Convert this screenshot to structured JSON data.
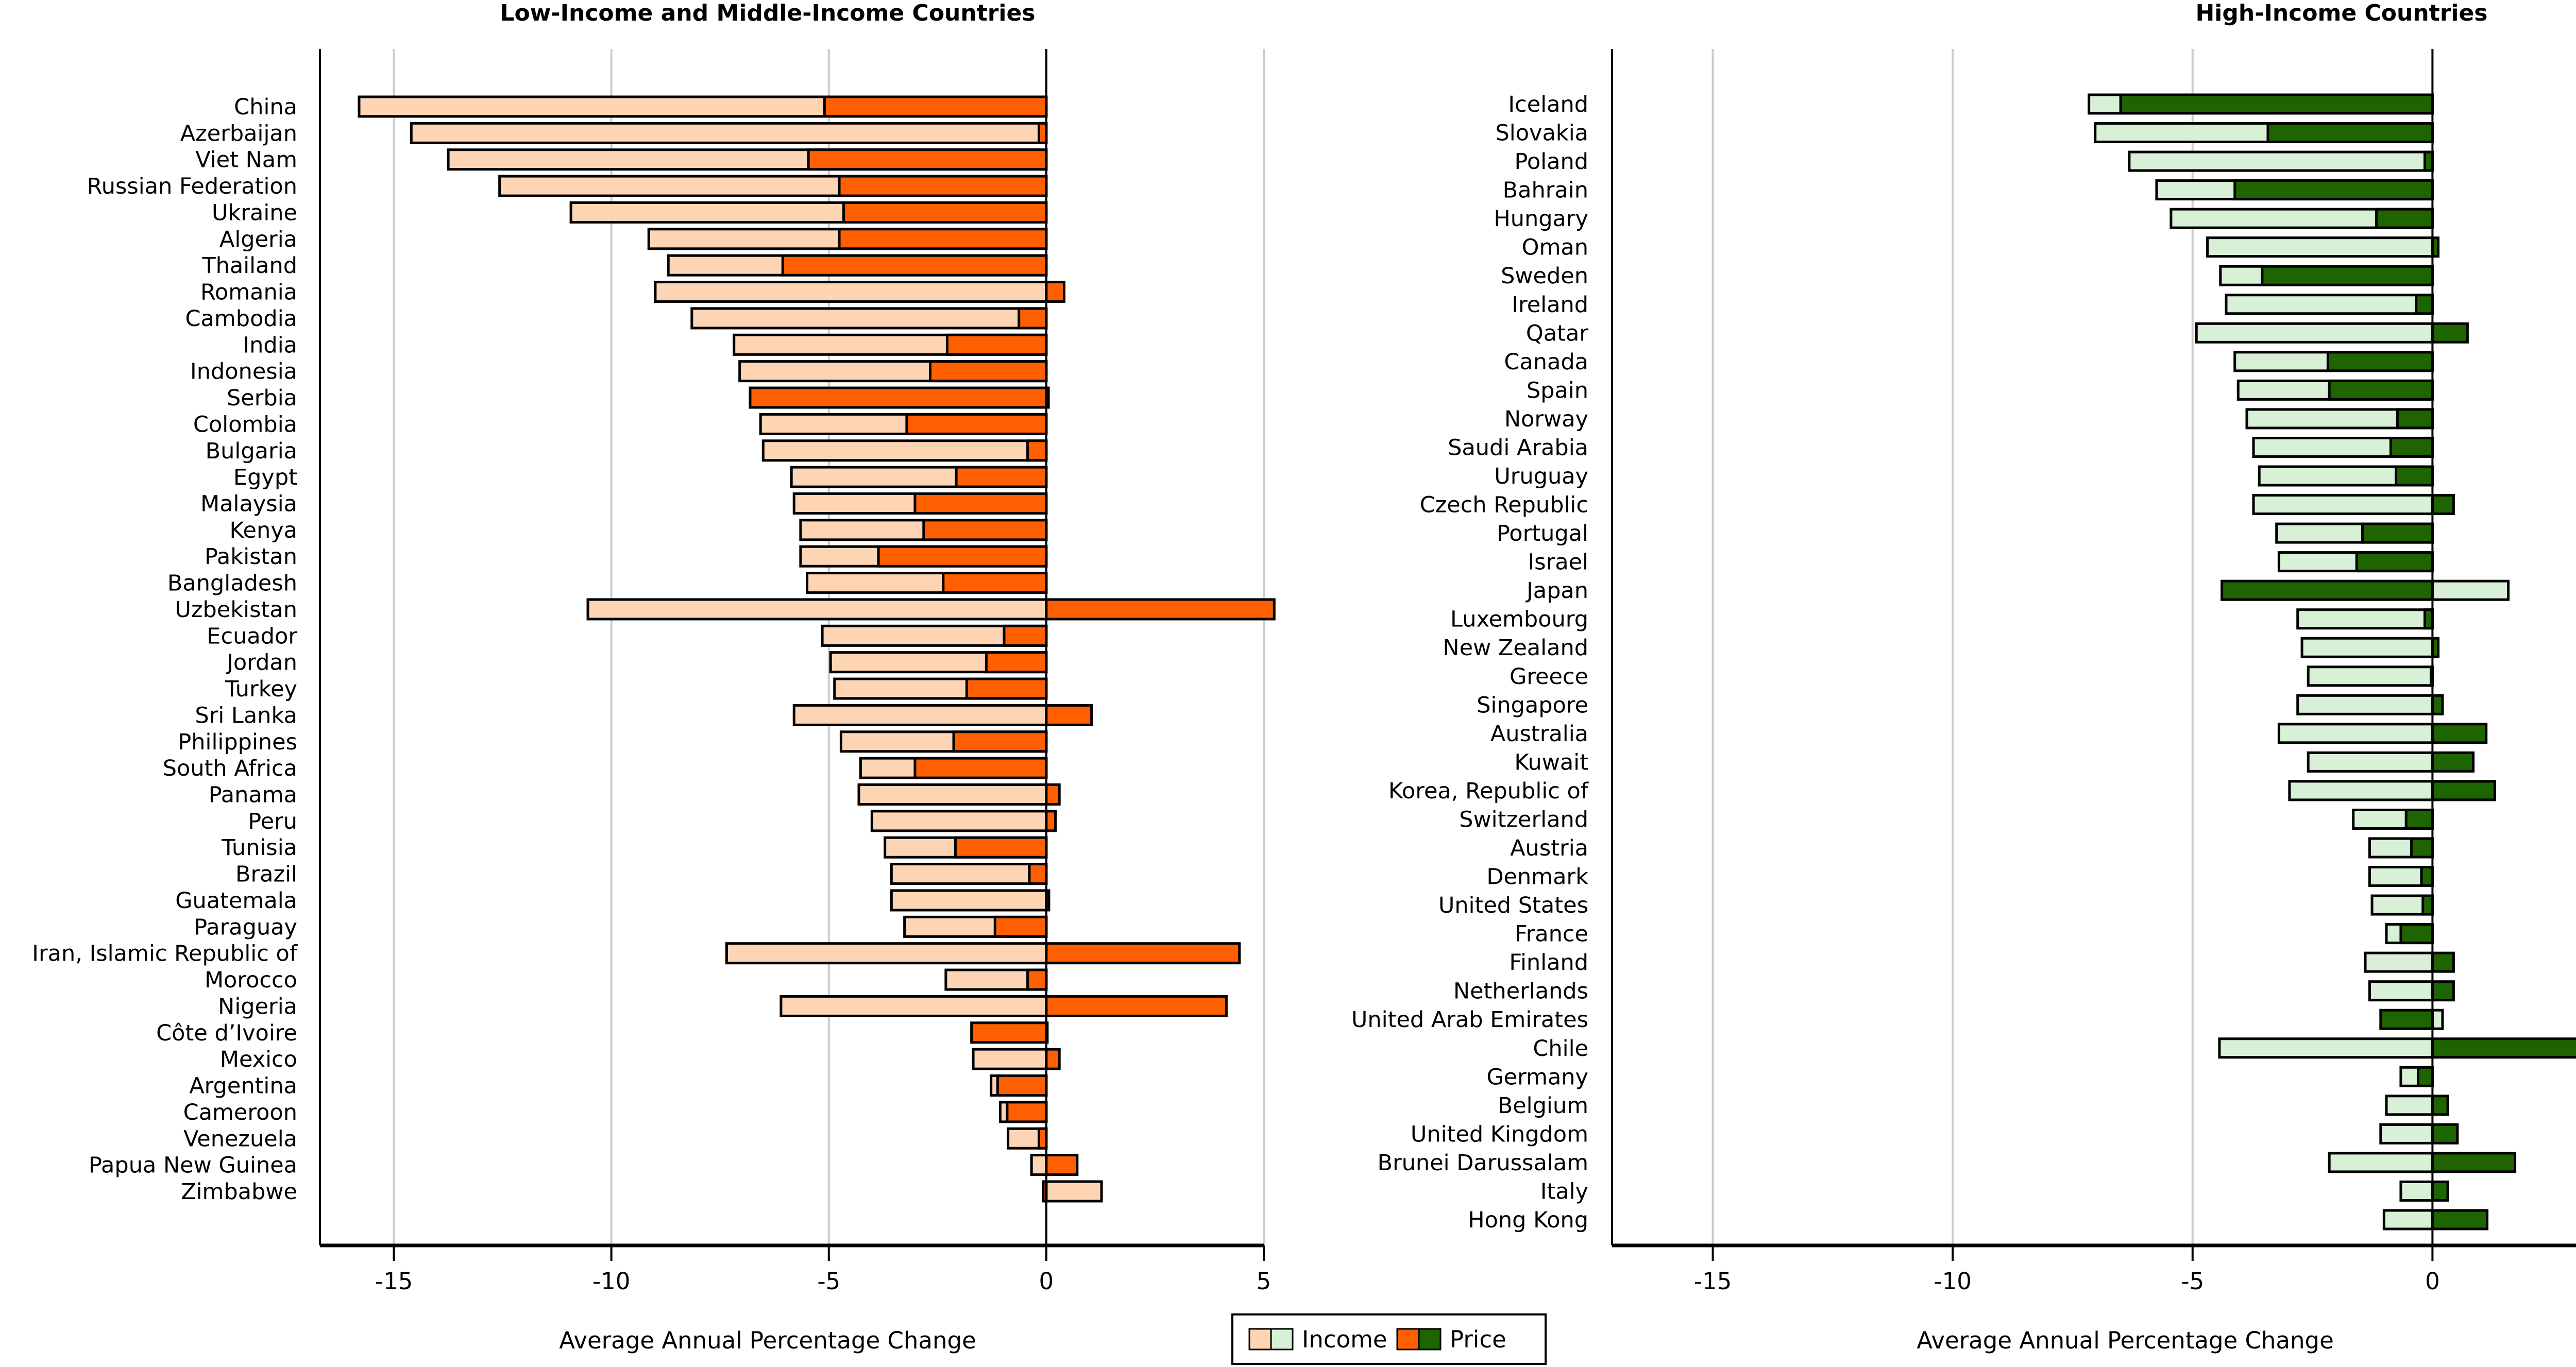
{
  "legend": {
    "income_label": "Income",
    "price_label": "Price"
  },
  "colors": {
    "low_income": "#FDD5B4",
    "low_price": "#FF5F00",
    "high_income": "#D8F0D6",
    "high_price": "#1E6400"
  },
  "chart_data": [
    {
      "type": "bar",
      "orientation": "horizontal",
      "title": "Low-Income and Middle-Income Countries",
      "xlabel": "Average Annual Percentage Change",
      "xlim": [
        -16.7,
        5
      ],
      "xticks": [
        -15,
        -10,
        -5,
        0,
        5
      ],
      "grid": true,
      "categories": [
        "China",
        "Azerbaijan",
        "Viet Nam",
        "Russian Federation",
        "Ukraine",
        "Algeria",
        "Thailand",
        "Romania",
        "Cambodia",
        "India",
        "Indonesia",
        "Serbia",
        "Colombia",
        "Bulgaria",
        "Egypt",
        "Malaysia",
        "Kenya",
        "Pakistan",
        "Bangladesh",
        "Uzbekistan",
        "Ecuador",
        "Jordan",
        "Turkey",
        "Sri Lanka",
        "Philippines",
        "South Africa",
        "Panama",
        "Peru",
        "Tunisia",
        "Brazil",
        "Guatemala",
        "Paraguay",
        "Iran, Islamic Republic of",
        "Morocco",
        "Nigeria",
        "Côte d’Ivoire",
        "Mexico",
        "Argentina",
        "Cameroon",
        "Venezuela",
        "Papua New Guinea",
        "Zimbabwe"
      ],
      "series": [
        {
          "name": "Income",
          "values": [
            -15.8,
            -14.6,
            -13.75,
            -12.57,
            -10.93,
            -9.14,
            -8.69,
            -8.99,
            -8.15,
            -7.18,
            -7.05,
            0.05,
            -6.57,
            -6.51,
            -5.86,
            -5.8,
            -5.65,
            -5.65,
            -5.5,
            -10.54,
            -5.15,
            -4.96,
            -4.87,
            -5.8,
            -4.72,
            -4.27,
            -4.31,
            -4.01,
            -3.71,
            -3.56,
            -3.56,
            -3.26,
            -7.35,
            -2.31,
            -6.1,
            0,
            -1.68,
            -1.27,
            -1.06,
            -0.88,
            -0.34,
            1.27
          ]
        },
        {
          "name": "Price",
          "values": [
            -5.1,
            -0.17,
            -5.47,
            -4.76,
            -4.66,
            -4.76,
            -6.06,
            0.41,
            -0.63,
            -2.28,
            -2.67,
            -6.81,
            -3.21,
            -0.43,
            -2.07,
            -3.02,
            -2.82,
            -3.86,
            -2.37,
            5.24,
            -0.97,
            -1.38,
            -1.83,
            1.04,
            -2.13,
            -3.02,
            0.3,
            0.21,
            -2.09,
            -0.39,
            0.06,
            -1.18,
            4.44,
            -0.43,
            4.14,
            -1.72,
            0.3,
            -1.12,
            -0.9,
            -0.17,
            0.71,
            -0.07
          ]
        }
      ]
    },
    {
      "type": "bar",
      "orientation": "horizontal",
      "title": "High-Income Countries",
      "xlabel": "Average Annual Percentage Change",
      "xlim": [
        -17.1,
        5
      ],
      "xticks": [
        -15,
        -10,
        -5,
        0,
        5
      ],
      "grid": true,
      "categories": [
        "Iceland",
        "Slovakia",
        "Poland",
        "Bahrain",
        "Hungary",
        "Oman",
        "Sweden",
        "Ireland",
        "Qatar",
        "Canada",
        "Spain",
        "Norway",
        "Saudi Arabia",
        "Uruguay",
        "Czech Republic",
        "Portugal",
        "Israel",
        "Japan",
        "Luxembourg",
        "New Zealand",
        "Greece",
        "Singapore",
        "Australia",
        "Kuwait",
        "Korea, Republic of",
        "Switzerland",
        "Austria",
        "Denmark",
        "United States",
        "France",
        "Finland",
        "Netherlands",
        "United Arab Emirates",
        "Chile",
        "Germany",
        "Belgium",
        "United Kingdom",
        "Brunei Darussalam",
        "Italy",
        "Hong Kong"
      ],
      "series": [
        {
          "name": "Income",
          "values": [
            -7.16,
            -7.03,
            -6.32,
            -5.75,
            -5.45,
            -4.69,
            -4.42,
            -4.3,
            -4.92,
            -4.12,
            -4.05,
            -3.87,
            -3.73,
            -3.61,
            -3.73,
            -3.25,
            -3.2,
            1.58,
            -2.81,
            -2.72,
            -2.59,
            -2.81,
            -3.2,
            -2.59,
            -2.98,
            -1.65,
            -1.31,
            -1.31,
            -1.26,
            -0.96,
            -1.4,
            -1.31,
            0.21,
            -4.44,
            -0.66,
            -0.96,
            -1.08,
            -2.15,
            -0.66,
            -1.01
          ]
        },
        {
          "name": "Price",
          "values": [
            -6.5,
            -3.43,
            -0.16,
            -4.12,
            -1.17,
            0.12,
            -3.55,
            -0.34,
            0.73,
            -2.18,
            -2.15,
            -0.73,
            -0.87,
            -0.76,
            0.44,
            -1.46,
            -1.58,
            -4.39,
            -0.16,
            0.12,
            -0.03,
            0.21,
            1.12,
            0.85,
            1.3,
            -0.55,
            -0.44,
            -0.23,
            -0.2,
            -0.66,
            0.44,
            0.44,
            -1.08,
            3.62,
            -0.3,
            0.32,
            0.52,
            1.72,
            0.32,
            1.14
          ]
        }
      ]
    }
  ]
}
